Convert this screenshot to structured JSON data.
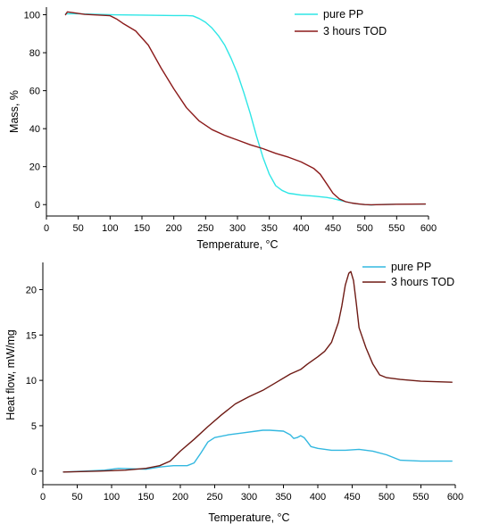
{
  "colors": {
    "pure_pp": "#2ee6e6",
    "tod": "#8b1a1a",
    "pure_pp_hf": "#33b8e0",
    "tod_hf": "#6e1a14",
    "axis": "#000000"
  },
  "chart_data": [
    {
      "type": "line",
      "xlabel": "Temperature, °C",
      "ylabel": "Mass, %",
      "xlim": [
        0,
        600
      ],
      "ylim": [
        -6,
        104
      ],
      "xticks": [
        0,
        50,
        100,
        150,
        200,
        250,
        300,
        350,
        400,
        450,
        500,
        550,
        600
      ],
      "yticks": [
        0,
        20,
        40,
        60,
        80,
        100
      ],
      "grid": false,
      "legend": "top-right",
      "series": [
        {
          "name": "pure PP",
          "x": [
            30,
            50,
            80,
            100,
            150,
            200,
            220,
            230,
            240,
            250,
            260,
            270,
            280,
            290,
            300,
            310,
            320,
            330,
            340,
            350,
            360,
            370,
            380,
            390,
            400,
            420,
            440,
            450,
            460,
            470,
            480,
            490,
            500,
            510,
            520,
            550,
            595
          ],
          "y": [
            100.5,
            100.5,
            100.2,
            100,
            99.8,
            99.6,
            99.6,
            99.4,
            98,
            96,
            93,
            89,
            84,
            77,
            69,
            59,
            48,
            36,
            25,
            16,
            10,
            7.5,
            6,
            5.5,
            5,
            4.5,
            3.8,
            3.2,
            2.3,
            1.5,
            0.8,
            0.3,
            0,
            -0.2,
            0,
            0.2,
            0.3
          ]
        },
        {
          "name": "3 hours TOD",
          "x": [
            30,
            33,
            60,
            100,
            110,
            120,
            140,
            160,
            180,
            200,
            220,
            240,
            260,
            280,
            300,
            320,
            340,
            360,
            380,
            400,
            420,
            430,
            440,
            450,
            460,
            470,
            480,
            490,
            500,
            510,
            550,
            595
          ],
          "y": [
            100,
            101.5,
            100.2,
            99.5,
            97.8,
            95.5,
            91.5,
            84,
            72,
            61,
            51,
            44,
            39.5,
            36.5,
            34,
            31.5,
            29.5,
            27,
            25,
            22.5,
            19,
            16,
            11,
            6,
            3,
            1.5,
            0.8,
            0.4,
            0,
            -0.1,
            0.2,
            0.3
          ]
        }
      ]
    },
    {
      "type": "line",
      "xlabel": "Temperature, °C",
      "ylabel": "Heat flow, mW/mg",
      "xlim": [
        0,
        600
      ],
      "ylim": [
        -1.5,
        23
      ],
      "xticks": [
        0,
        50,
        100,
        150,
        200,
        250,
        300,
        350,
        400,
        450,
        500,
        550,
        600
      ],
      "yticks": [
        0,
        5,
        10,
        15,
        20
      ],
      "grid": false,
      "legend": "top-right",
      "series": [
        {
          "name": "pure PP",
          "x": [
            30,
            60,
            90,
            110,
            130,
            150,
            170,
            190,
            210,
            220,
            230,
            240,
            250,
            270,
            290,
            310,
            320,
            330,
            350,
            360,
            365,
            370,
            375,
            380,
            385,
            390,
            400,
            420,
            440,
            460,
            480,
            500,
            520,
            550,
            595
          ],
          "y": [
            -0.1,
            0,
            0.1,
            0.3,
            0.25,
            0.2,
            0.45,
            0.6,
            0.6,
            0.9,
            2,
            3.2,
            3.7,
            4,
            4.2,
            4.4,
            4.5,
            4.5,
            4.4,
            4,
            3.6,
            3.7,
            3.9,
            3.7,
            3.2,
            2.7,
            2.5,
            2.3,
            2.3,
            2.4,
            2.2,
            1.8,
            1.2,
            1.1,
            1.1
          ]
        },
        {
          "name": "3 hours TOD",
          "x": [
            30,
            80,
            120,
            150,
            170,
            185,
            200,
            220,
            240,
            260,
            280,
            300,
            320,
            340,
            360,
            375,
            385,
            400,
            410,
            420,
            430,
            435,
            440,
            445,
            448,
            452,
            456,
            460,
            470,
            480,
            490,
            500,
            520,
            550,
            595
          ],
          "y": [
            -0.1,
            0,
            0.1,
            0.3,
            0.6,
            1.1,
            2.2,
            3.5,
            4.9,
            6.2,
            7.4,
            8.2,
            8.9,
            9.8,
            10.7,
            11.2,
            11.8,
            12.6,
            13.2,
            14.2,
            16.4,
            18.2,
            20.5,
            21.8,
            22,
            21,
            18.5,
            15.8,
            13.6,
            11.8,
            10.6,
            10.3,
            10.1,
            9.9,
            9.8
          ]
        }
      ]
    }
  ]
}
